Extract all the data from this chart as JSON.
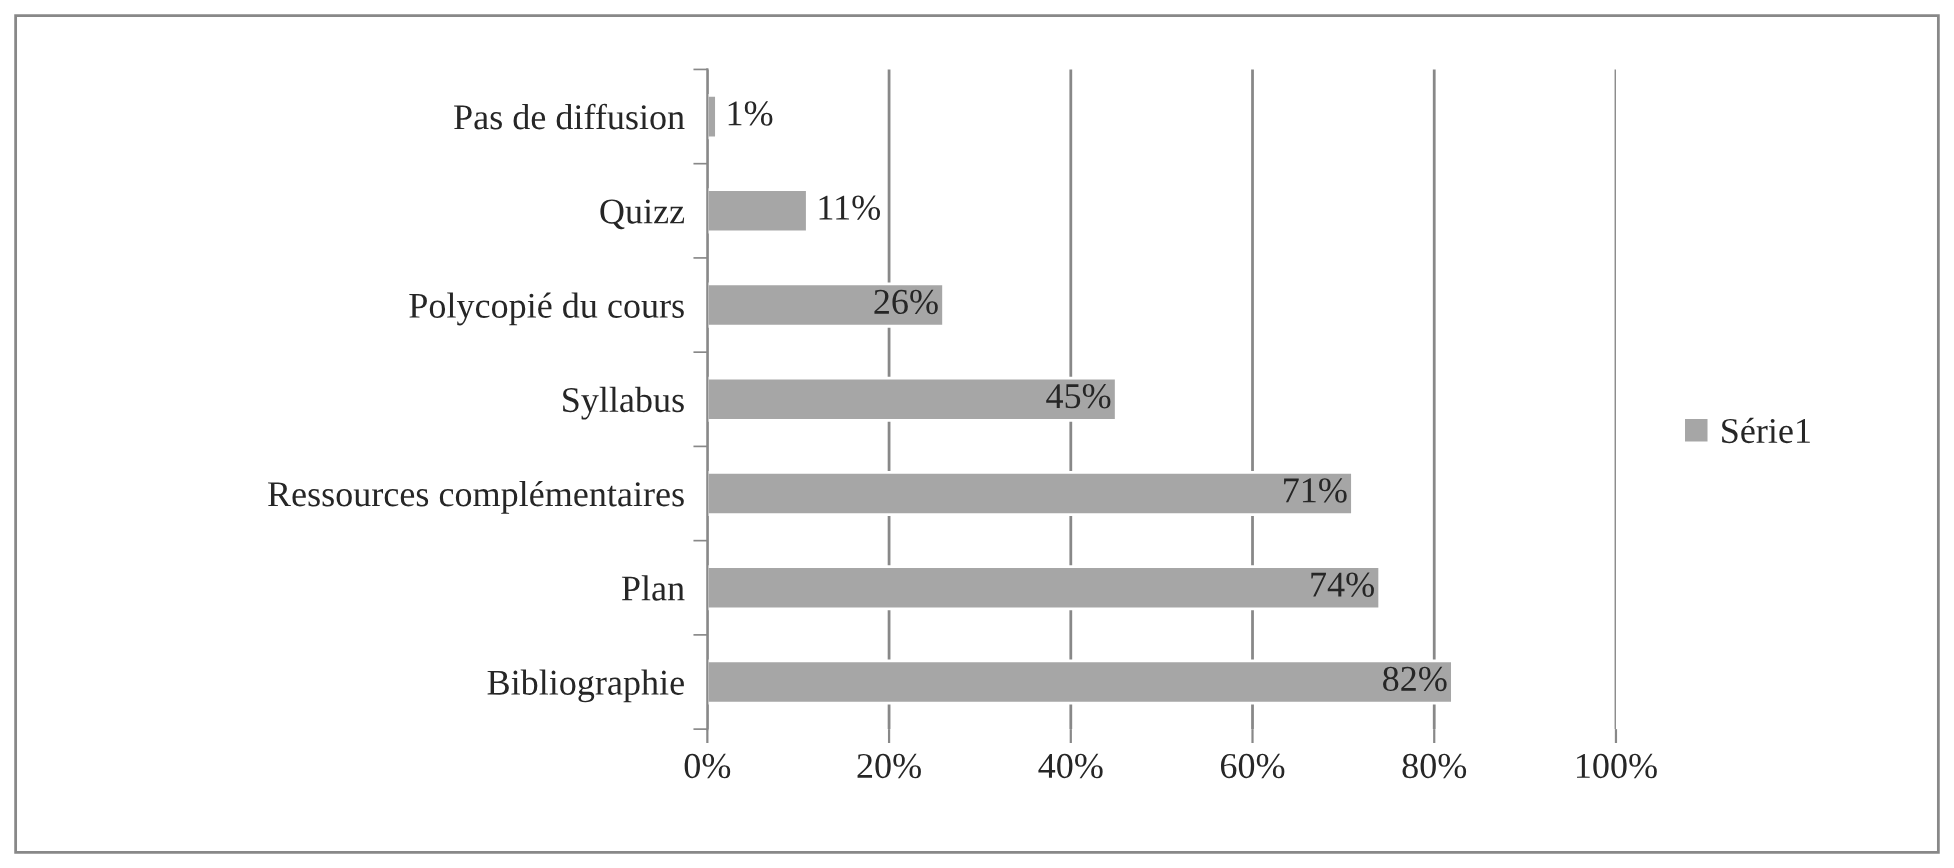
{
  "chart_data": {
    "type": "bar",
    "orientation": "horizontal",
    "categories": [
      "Pas de diffusion",
      "Quizz",
      "Polycopié du cours",
      "Syllabus",
      "Ressources complémentaires",
      "Plan",
      "Bibliographie"
    ],
    "series": [
      {
        "name": "Série1",
        "color": "#a6a6a6",
        "values": [
          1,
          11,
          26,
          45,
          71,
          74,
          82
        ],
        "value_labels": [
          "1%",
          "11%",
          "26%",
          "45%",
          "71%",
          "74%",
          "82%"
        ]
      }
    ],
    "xlim": [
      0,
      100
    ],
    "xticks": [
      {
        "value": 0,
        "label": "0%"
      },
      {
        "value": 20,
        "label": "20%"
      },
      {
        "value": 40,
        "label": "40%"
      },
      {
        "value": 60,
        "label": "60%"
      },
      {
        "value": 80,
        "label": "80%"
      },
      {
        "value": 100,
        "label": "100%"
      }
    ],
    "grid": "x",
    "legend": "right"
  }
}
